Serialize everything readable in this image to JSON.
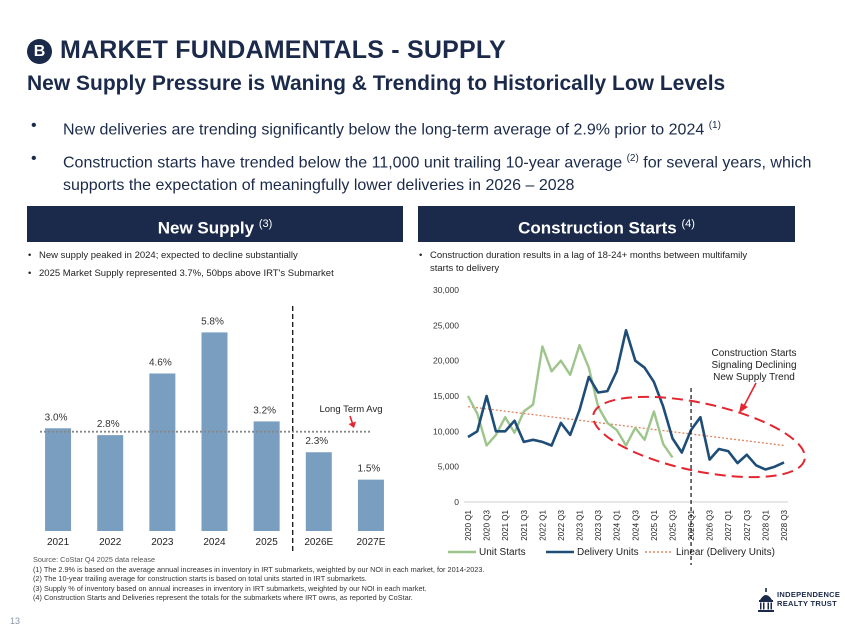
{
  "header": {
    "badge": "B",
    "title": "MARKET FUNDAMENTALS - SUPPLY",
    "subtitle": "New Supply Pressure is Waning & Trending to Historically Low Levels"
  },
  "bullets": [
    {
      "text": "New deliveries are trending significantly below the long-term average of 2.9% prior to 2024 ",
      "sup": "(1)"
    },
    {
      "text": "Construction starts have trended below the 11,000 unit trailing 10-year average ",
      "sup": "(2)",
      "text2": " for several years, which supports the expectation of meaningfully lower deliveries in 2026 – 2028"
    }
  ],
  "left_panel": {
    "title": "New Supply ",
    "title_sup": "(3)",
    "bullets": [
      "New supply peaked in 2024; expected to decline substantially",
      "2025 Market Supply represented 3.7%, 50bps above IRT's Submarket"
    ]
  },
  "right_panel": {
    "title": "Construction Starts ",
    "title_sup": "(4)",
    "bullets": [
      "Construction duration results in a lag of 18-24+ months between multifamily starts to delivery"
    ]
  },
  "chart_data": [
    {
      "type": "bar",
      "categories": [
        "2021",
        "2022",
        "2023",
        "2024",
        "2025",
        "2026E",
        "2027E"
      ],
      "values": [
        3.0,
        2.8,
        4.6,
        5.8,
        3.2,
        2.3,
        1.5
      ],
      "data_labels": [
        "3.0%",
        "2.8%",
        "4.6%",
        "5.8%",
        "3.2%",
        "2.3%",
        "1.5%"
      ],
      "ylim": [
        0,
        6.6
      ],
      "reference_line": {
        "value": 2.9,
        "label": "Long Term Avg"
      },
      "bar_color": "#7a9ec0",
      "title": "",
      "xlabel": "",
      "ylabel": ""
    },
    {
      "type": "line",
      "x": [
        "2020 Q1",
        "2020 Q2",
        "2020 Q3",
        "2020 Q4",
        "2021 Q1",
        "2021 Q2",
        "2021 Q3",
        "2021 Q4",
        "2022 Q1",
        "2022 Q2",
        "2022 Q3",
        "2022 Q4",
        "2023 Q1",
        "2023 Q2",
        "2023 Q3",
        "2023 Q4",
        "2024 Q1",
        "2024 Q2",
        "2024 Q3",
        "2024 Q4",
        "2025 Q1",
        "2025 Q2",
        "2025 Q3",
        "2025 Q4",
        "2026 Q1",
        "2026 Q2",
        "2026 Q3",
        "2026 Q4",
        "2027 Q1",
        "2027 Q2",
        "2027 Q3",
        "2027 Q4",
        "2028 Q1",
        "2028 Q2",
        "2028 Q3"
      ],
      "x_tick_labels": [
        "2020 Q1",
        "2020 Q3",
        "2021 Q1",
        "2021 Q3",
        "2022 Q1",
        "2022 Q3",
        "2023 Q1",
        "2023 Q3",
        "2024 Q1",
        "2024 Q3",
        "2025 Q1",
        "2025 Q3",
        "2026 Q1",
        "2026 Q3",
        "2027 Q1",
        "2027 Q3",
        "2028 Q1",
        "2028 Q3"
      ],
      "series": [
        {
          "name": "Unit Starts",
          "color": "#9dc58c",
          "values": [
            15000,
            12500,
            8000,
            9500,
            12000,
            9800,
            12800,
            13800,
            22000,
            18500,
            20000,
            18000,
            22200,
            19000,
            13500,
            11200,
            10200,
            8000,
            10500,
            8800,
            12800,
            8200,
            6300,
            null,
            null,
            null,
            null,
            null,
            null,
            null,
            null,
            null,
            null,
            null,
            null
          ]
        },
        {
          "name": "Delivery Units",
          "color": "#1e4d78",
          "values": [
            9200,
            10000,
            15000,
            10000,
            10000,
            11500,
            8500,
            8800,
            8500,
            8000,
            11200,
            9500,
            13000,
            17700,
            15500,
            15700,
            18500,
            24300,
            20000,
            19000,
            17000,
            13500,
            9000,
            7000,
            10200,
            12000,
            6000,
            7500,
            7200,
            5500,
            6700,
            5200,
            4600,
            5000,
            5600
          ]
        },
        {
          "name": "Linear (Delivery Units)",
          "color": "#e0845e",
          "dashed": true,
          "from": 13500,
          "to": 8000
        }
      ],
      "ylim": [
        0,
        30000
      ],
      "y_ticks": [
        "0",
        "5,000",
        "10,000",
        "15,000",
        "20,000",
        "25,000",
        "30,000"
      ],
      "annotation": "Construction Starts Signaling Declining New Supply Trend",
      "annotation_lines": [
        "Construction Starts",
        "Signaling Declining",
        "New Supply Trend"
      ],
      "title": "",
      "xlabel": "",
      "ylabel": ""
    }
  ],
  "footnotes": {
    "source": "Source: CoStar Q4 2025 data release",
    "notes": [
      "(1)  The 2.9% is based on the average annual increases in inventory in IRT submarkets, weighted by our NOI in each market, for 2014-2023.",
      "(2)  The 10-year trailing average for construction starts is based on total units started in IRT submarkets.",
      "(3)  Supply % of inventory based on annual increases in inventory in IRT submarkets, weighted by our NOI in each market.",
      "(4)  Construction Starts and Deliveries represent the totals for the submarkets where IRT owns, as reported by CoStar."
    ]
  },
  "page_number": "13",
  "logo": {
    "line1": "INDEPENDENCE",
    "line2": "REALTY TRUST"
  }
}
